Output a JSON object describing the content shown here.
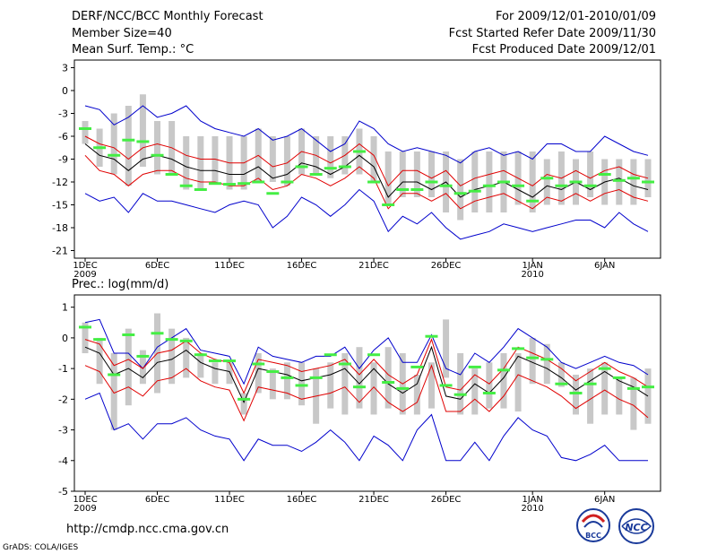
{
  "header": {
    "title": "DERF/NCC/BCC Monthly Forecast",
    "member": "Member Size=40",
    "variable": "Mean Surf. Temp.: °C",
    "period": "For 2009/12/01-2010/01/09",
    "started": "Fcst Started Refer Date 2009/11/30",
    "produced": "Fcst Produced Date 2009/12/01"
  },
  "panel2_label": "Prec.: log(mm/d)",
  "footer": {
    "url": "http://cmdp.ncc.cma.gov.cn",
    "credit": "GrADS: COLA/IGES"
  },
  "logos": {
    "bcc": "BCC",
    "ncc": "NCC"
  },
  "colors": {
    "black": "#000000",
    "red": "#e00000",
    "blue": "#0000cc",
    "green": "#44ee44",
    "box": "#c8c8c8"
  },
  "chart_data": [
    {
      "type": "line",
      "name": "Mean Surf. Temp.",
      "ylabel": "°C",
      "ylim": [
        -22,
        4
      ],
      "yticks": [
        3,
        0,
        -3,
        -6,
        -9,
        -12,
        -15,
        -18,
        -21
      ],
      "days": 40,
      "x_ticks": [
        {
          "day": 1,
          "label": "1DEC",
          "label2": "2009"
        },
        {
          "day": 6,
          "label": "6DEC",
          "label2": ""
        },
        {
          "day": 11,
          "label": "11DEC",
          "label2": ""
        },
        {
          "day": 16,
          "label": "16DEC",
          "label2": ""
        },
        {
          "day": 21,
          "label": "21DEC",
          "label2": ""
        },
        {
          "day": 26,
          "label": "26DEC",
          "label2": ""
        },
        {
          "day": 32,
          "label": "1JAN",
          "label2": "2010"
        },
        {
          "day": 37,
          "label": "6JAN",
          "label2": ""
        }
      ],
      "box_low": [
        -7,
        -10,
        -11,
        -12.5,
        -10,
        -11,
        -11,
        -13,
        -13,
        -12,
        -13,
        -13,
        -12,
        -12,
        -12.5,
        -11,
        -11,
        -11.5,
        -11,
        -11,
        -12,
        -15,
        -14,
        -14,
        -14,
        -16,
        -17,
        -16,
        -16,
        -16,
        -15,
        -16,
        -15,
        -15,
        -15,
        -14,
        -15,
        -15,
        -15,
        -14
      ],
      "box_high": [
        -4,
        -5,
        -3,
        -2,
        -0.5,
        -4,
        -4,
        -6,
        -6,
        -6,
        -6,
        -6,
        -5,
        -6,
        -6,
        -5,
        -6,
        -6,
        -6,
        -5,
        -6,
        -8,
        -8,
        -8,
        -8,
        -8,
        -9,
        -8,
        -8,
        -8,
        -8,
        -8,
        -9,
        -8,
        -9,
        -8,
        -9,
        -9,
        -9,
        -9
      ],
      "obs": [
        -5,
        -7.5,
        -8.5,
        -6.5,
        -6.7,
        -8.5,
        -11,
        -12.5,
        -13,
        -12.2,
        -12.3,
        -12.2,
        -12,
        -13.5,
        -12,
        -10,
        -11,
        -10.2,
        -10,
        -8,
        -12,
        -15,
        -13,
        -13,
        -12,
        -12.5,
        -13.5,
        -13.2,
        -12.5,
        -12,
        -12.5,
        -14.5,
        -11.5,
        -12.5,
        -12,
        -12.5,
        -11,
        -11.8,
        -11.5,
        -12
      ],
      "ens_mean": [
        -7,
        -8.5,
        -9,
        -10.5,
        -9,
        -8.5,
        -9,
        -10,
        -10.5,
        -10.5,
        -11,
        -11,
        -10,
        -11.5,
        -11,
        -9.5,
        -10,
        -11,
        -10,
        -8.5,
        -10,
        -14,
        -12,
        -12,
        -13,
        -12,
        -14,
        -13,
        -12.5,
        -12,
        -13,
        -14,
        -12.5,
        -13,
        -12,
        -13,
        -12,
        -11.5,
        -12.5,
        -13
      ],
      "ens_upper": [
        -6,
        -7,
        -7.5,
        -9,
        -7.5,
        -7,
        -7.5,
        -8.5,
        -9,
        -9,
        -9.5,
        -9.5,
        -8.5,
        -10,
        -9.5,
        -8,
        -8.5,
        -9.5,
        -8.5,
        -7,
        -8.5,
        -12.5,
        -10.5,
        -10.5,
        -11.5,
        -10.5,
        -12.5,
        -11.5,
        -11,
        -10.5,
        -11.5,
        -12.5,
        -11,
        -11.5,
        -10.5,
        -11.5,
        -10.5,
        -10,
        -11,
        -11.5
      ],
      "ens_lower": [
        -8.5,
        -10.5,
        -11,
        -12.5,
        -11,
        -10.5,
        -10.5,
        -11.5,
        -12,
        -12,
        -12.5,
        -12.5,
        -11.5,
        -13,
        -12.5,
        -11,
        -11.5,
        -12.5,
        -11.5,
        -10,
        -11.5,
        -15.5,
        -13.5,
        -13.5,
        -14.5,
        -13.5,
        -15.5,
        -14.5,
        -14,
        -13.5,
        -14.5,
        -15.5,
        -14,
        -14.5,
        -13.5,
        -14.5,
        -13.5,
        -13,
        -14,
        -14.5
      ],
      "ens_max": [
        -2,
        -2.5,
        -4.5,
        -3.5,
        -2,
        -3.5,
        -3,
        -2,
        -4,
        -5,
        -5.5,
        -6,
        -5,
        -6.5,
        -6,
        -5,
        -6.5,
        -8,
        -7,
        -4,
        -5,
        -7,
        -8,
        -7.5,
        -8,
        -8.5,
        -9.5,
        -8,
        -7.5,
        -8.5,
        -8,
        -9,
        -7,
        -7,
        -8,
        -8,
        -6,
        -7,
        -8,
        -8.5
      ],
      "ens_min": [
        -13.5,
        -14.5,
        -14,
        -16,
        -13.5,
        -14.5,
        -14.5,
        -15,
        -15.5,
        -16,
        -15,
        -14.5,
        -15,
        -18,
        -16.5,
        -14,
        -15,
        -16.5,
        -15,
        -13,
        -14.5,
        -18.5,
        -16.5,
        -17.5,
        -16,
        -18,
        -19.5,
        -19,
        -18.5,
        -17.5,
        -18,
        -18.5,
        -18,
        -17.5,
        -17,
        -17,
        -18,
        -16,
        -17.5,
        -18.5
      ]
    },
    {
      "type": "line",
      "name": "Prec.",
      "ylabel": "log(mm/d)",
      "ylim": [
        -5,
        1.4
      ],
      "yticks": [
        1,
        0,
        -1,
        -2,
        -3,
        -4,
        -5
      ],
      "days": 40,
      "x_ticks": [
        {
          "day": 1,
          "label": "1DEC",
          "label2": "2009"
        },
        {
          "day": 6,
          "label": "6DEC",
          "label2": ""
        },
        {
          "day": 11,
          "label": "11DEC",
          "label2": ""
        },
        {
          "day": 16,
          "label": "16DEC",
          "label2": ""
        },
        {
          "day": 21,
          "label": "21DEC",
          "label2": ""
        },
        {
          "day": 26,
          "label": "26DEC",
          "label2": ""
        },
        {
          "day": 32,
          "label": "1JAN",
          "label2": "2010"
        },
        {
          "day": 37,
          "label": "6JAN",
          "label2": ""
        }
      ],
      "box_low": [
        -0.5,
        -1.5,
        -3,
        -2.2,
        -1.5,
        -1.8,
        -1.5,
        -1.3,
        -1.3,
        -1.5,
        -1.5,
        -2.5,
        -1.8,
        -2,
        -2,
        -2.2,
        -2.8,
        -2.3,
        -2.5,
        -2.3,
        -2.5,
        -2.3,
        -2.5,
        -2.5,
        -2.3,
        -1.3,
        -2.5,
        -2.5,
        -2.3,
        -2.3,
        -2.4,
        -1.5,
        -1.5,
        -1.6,
        -2.5,
        -2.8,
        -2.5,
        -2.5,
        -3,
        -2.8
      ],
      "box_high": [
        0.5,
        0,
        -0.5,
        0.3,
        -0.4,
        0.8,
        0.3,
        0,
        -0.5,
        -0.8,
        -0.8,
        -1.8,
        -0.5,
        -1,
        -0.8,
        -0.8,
        -1,
        -0.8,
        -0.5,
        -0.3,
        -0.8,
        -0.3,
        -0.5,
        -1.2,
        -0.8,
        0.6,
        -0.5,
        -1,
        -0.8,
        -0.5,
        -0.5,
        0,
        -0.2,
        -0.8,
        -1.2,
        -1,
        -0.8,
        -1.3,
        -1.3,
        -1
      ],
      "obs": [
        0.35,
        -0.05,
        -1.2,
        0.1,
        -0.6,
        0.15,
        -0.05,
        -0.1,
        -0.55,
        -0.75,
        -0.75,
        -2,
        -0.85,
        -1.1,
        -1.3,
        -1.55,
        -1.3,
        -0.55,
        -0.85,
        -1.6,
        -0.55,
        -1.45,
        -1.65,
        -0.95,
        0.05,
        -1.55,
        -1.85,
        -0.95,
        -1.8,
        -1.05,
        -0.35,
        -0.65,
        -0.7,
        -1.5,
        -1.8,
        -1.5,
        -1,
        -1.3,
        -1.65,
        -1.6
      ],
      "ens_mean": [
        -0.3,
        -0.5,
        -1.2,
        -1,
        -1.3,
        -0.8,
        -0.7,
        -0.4,
        -0.8,
        -1,
        -1.1,
        -2.1,
        -1,
        -1.1,
        -1.2,
        -1.4,
        -1.3,
        -1.2,
        -1,
        -1.5,
        -1,
        -1.5,
        -1.8,
        -1.5,
        -0.3,
        -1.9,
        -2,
        -1.5,
        -1.8,
        -1.3,
        -0.6,
        -0.8,
        -1,
        -1.3,
        -1.7,
        -1.4,
        -1.1,
        -1.4,
        -1.6,
        -1.9
      ],
      "ens_upper": [
        -0.05,
        -0.2,
        -0.9,
        -0.7,
        -1,
        -0.5,
        -0.4,
        -0.1,
        -0.5,
        -0.7,
        -0.8,
        -1.8,
        -0.7,
        -0.8,
        -0.9,
        -1.1,
        -1,
        -0.9,
        -0.7,
        -1.2,
        -0.7,
        -1.2,
        -1.5,
        -1.2,
        -0.05,
        -1.6,
        -1.7,
        -1.2,
        -1.5,
        -1,
        -0.3,
        -0.5,
        -0.7,
        -1,
        -1.4,
        -1.1,
        -0.8,
        -1.1,
        -1.3,
        -1.6
      ],
      "ens_lower": [
        -0.9,
        -1.1,
        -1.8,
        -1.6,
        -1.9,
        -1.4,
        -1.3,
        -1,
        -1.4,
        -1.6,
        -1.7,
        -2.7,
        -1.6,
        -1.7,
        -1.8,
        -2,
        -1.9,
        -1.8,
        -1.6,
        -2.1,
        -1.6,
        -2.1,
        -2.4,
        -2.1,
        -0.9,
        -2.4,
        -2.4,
        -2,
        -2.4,
        -1.9,
        -1.2,
        -1.4,
        -1.6,
        -1.9,
        -2.3,
        -2,
        -1.7,
        -2,
        -2.2,
        -2.6
      ],
      "ens_max": [
        0.5,
        0.6,
        -0.5,
        -0.5,
        -1,
        -0.3,
        0,
        0.3,
        -0.4,
        -0.5,
        -0.6,
        -1.5,
        -0.3,
        -0.6,
        -0.7,
        -0.8,
        -0.6,
        -0.6,
        -0.3,
        -1,
        -0.4,
        0,
        -0.8,
        -0.8,
        0.1,
        -1,
        -1.2,
        -0.5,
        -0.8,
        -0.3,
        0.3,
        0,
        -0.3,
        -0.8,
        -1,
        -0.8,
        -0.6,
        -0.8,
        -0.9,
        -1.2
      ],
      "ens_min": [
        -2,
        -1.8,
        -3,
        -2.8,
        -3.3,
        -2.8,
        -2.8,
        -2.6,
        -3,
        -3.2,
        -3.3,
        -4,
        -3.3,
        -3.5,
        -3.5,
        -3.7,
        -3.4,
        -3,
        -3.4,
        -4,
        -3.2,
        -3.5,
        -4,
        -3,
        -2.5,
        -4,
        -4,
        -3.4,
        -4,
        -3.2,
        -2.6,
        -3,
        -3.2,
        -3.9,
        -4,
        -3.8,
        -3.5,
        -4,
        -4,
        -4
      ]
    }
  ]
}
